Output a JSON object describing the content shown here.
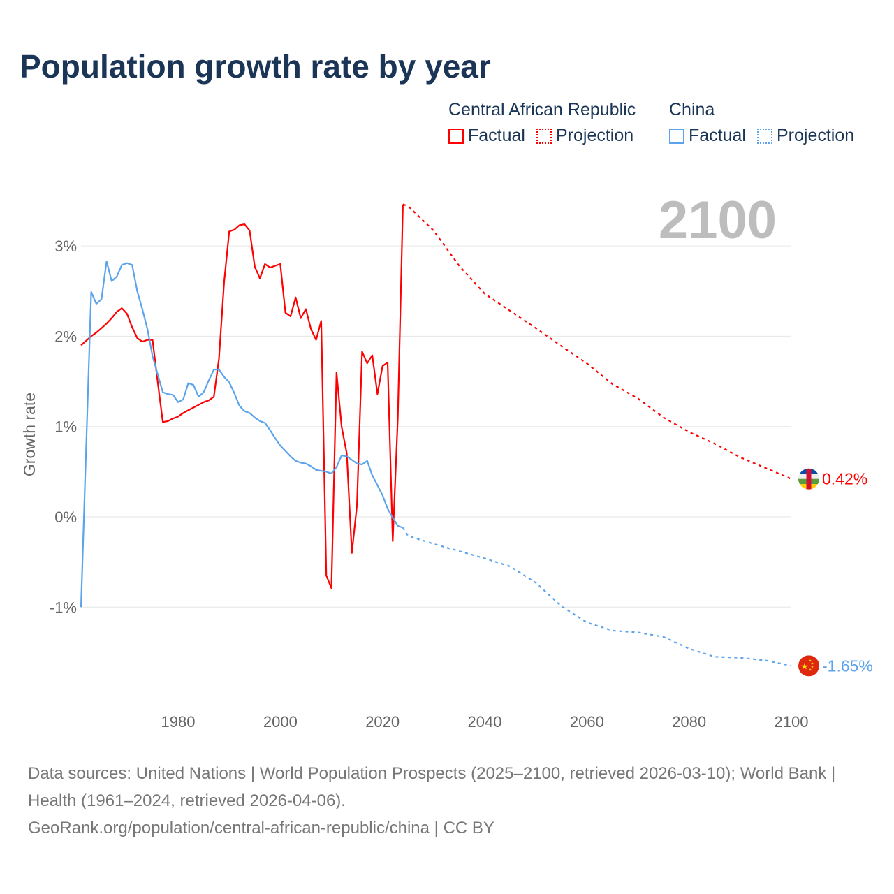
{
  "title": "Population growth rate by year",
  "legend": {
    "groups": [
      {
        "name": "Central African Republic",
        "factual": "Factual",
        "projection": "Projection"
      },
      {
        "name": "China",
        "factual": "Factual",
        "projection": "Projection"
      }
    ]
  },
  "current_year": "2100",
  "end_labels": {
    "car": "0.42%",
    "china": "-1.65%"
  },
  "flags": {
    "car": "central-african-republic-flag",
    "china": "china-flag"
  },
  "colors": {
    "car": "#ff0000",
    "china": "#5ba4ec",
    "title": "#1a3556"
  },
  "footer": {
    "line1": "Data sources: United Nations | World Population Prospects (2025–2100, retrieved 2026-03-10); World Bank | Health (1961–2024, retrieved 2026-04-06).",
    "line2": "GeoRank.org/population/central-african-republic/china | CC BY"
  },
  "chart_data": {
    "type": "line",
    "title": "Population growth rate by year",
    "xlabel": "",
    "ylabel": "Growth rate",
    "xlim": [
      1961,
      2100
    ],
    "ylim": [
      -1.9,
      3.6
    ],
    "x_ticks": [
      1980,
      2000,
      2020,
      2040,
      2060,
      2080,
      2100
    ],
    "x_tick_labels": [
      "1980",
      "2000",
      "2020",
      "2040",
      "2060",
      "2080",
      "2100"
    ],
    "y_ticks": [
      -1,
      0,
      1,
      2,
      3
    ],
    "y_tick_labels": [
      "-1%",
      "0%",
      "1%",
      "2%",
      "3%"
    ],
    "grid": true,
    "legend_position": "top-right",
    "series": [
      {
        "name": "Central African Republic – Factual",
        "key": "car",
        "style": "solid",
        "x": [
          1961,
          1962,
          1963,
          1964,
          1965,
          1966,
          1967,
          1968,
          1969,
          1970,
          1971,
          1972,
          1973,
          1974,
          1975,
          1976,
          1977,
          1978,
          1979,
          1980,
          1981,
          1982,
          1983,
          1984,
          1985,
          1986,
          1987,
          1988,
          1989,
          1990,
          1991,
          1992,
          1993,
          1994,
          1995,
          1996,
          1997,
          1998,
          1999,
          2000,
          2001,
          2002,
          2003,
          2004,
          2005,
          2006,
          2007,
          2008,
          2009,
          2010,
          2011,
          2012,
          2013,
          2014,
          2015,
          2016,
          2017,
          2018,
          2019,
          2020,
          2021,
          2022,
          2023,
          2024
        ],
        "y": [
          1.9,
          1.95,
          2.0,
          2.04,
          2.09,
          2.14,
          2.2,
          2.27,
          2.31,
          2.25,
          2.1,
          1.98,
          1.94,
          1.96,
          1.96,
          1.5,
          1.05,
          1.06,
          1.09,
          1.11,
          1.15,
          1.18,
          1.21,
          1.24,
          1.27,
          1.29,
          1.33,
          1.75,
          2.6,
          3.16,
          3.18,
          3.23,
          3.24,
          3.17,
          2.77,
          2.64,
          2.8,
          2.76,
          2.78,
          2.8,
          2.26,
          2.22,
          2.43,
          2.2,
          2.3,
          2.08,
          1.96,
          2.17,
          -0.65,
          -0.79,
          1.6,
          1.0,
          0.7,
          -0.4,
          0.13,
          1.83,
          1.7,
          1.79,
          1.36,
          1.67,
          1.71,
          -0.27,
          1.1,
          3.46
        ]
      },
      {
        "name": "Central African Republic – Projection",
        "key": "car",
        "style": "dotted",
        "x": [
          2024,
          2025,
          2030,
          2035,
          2040,
          2045,
          2050,
          2055,
          2060,
          2065,
          2070,
          2075,
          2080,
          2085,
          2090,
          2095,
          2100
        ],
        "y": [
          3.46,
          3.44,
          3.17,
          2.78,
          2.47,
          2.28,
          2.09,
          1.89,
          1.7,
          1.47,
          1.31,
          1.1,
          0.94,
          0.81,
          0.66,
          0.54,
          0.42
        ]
      },
      {
        "name": "China – Factual",
        "key": "china",
        "style": "solid",
        "x": [
          1961,
          1962,
          1963,
          1964,
          1965,
          1966,
          1967,
          1968,
          1969,
          1970,
          1971,
          1972,
          1973,
          1974,
          1975,
          1976,
          1977,
          1978,
          1979,
          1980,
          1981,
          1982,
          1983,
          1984,
          1985,
          1986,
          1987,
          1988,
          1989,
          1990,
          1991,
          1992,
          1993,
          1994,
          1995,
          1996,
          1997,
          1998,
          1999,
          2000,
          2001,
          2002,
          2003,
          2004,
          2005,
          2006,
          2007,
          2008,
          2009,
          2010,
          2011,
          2012,
          2013,
          2014,
          2015,
          2016,
          2017,
          2018,
          2019,
          2020,
          2021,
          2022,
          2023,
          2024
        ],
        "y": [
          -1.0,
          0.75,
          2.49,
          2.36,
          2.41,
          2.83,
          2.61,
          2.66,
          2.79,
          2.81,
          2.79,
          2.5,
          2.3,
          2.08,
          1.78,
          1.58,
          1.38,
          1.36,
          1.35,
          1.27,
          1.3,
          1.48,
          1.46,
          1.33,
          1.38,
          1.51,
          1.63,
          1.63,
          1.55,
          1.49,
          1.37,
          1.23,
          1.17,
          1.15,
          1.1,
          1.06,
          1.04,
          0.96,
          0.87,
          0.79,
          0.73,
          0.67,
          0.62,
          0.6,
          0.59,
          0.56,
          0.52,
          0.51,
          0.5,
          0.48,
          0.55,
          0.68,
          0.67,
          0.63,
          0.59,
          0.58,
          0.62,
          0.46,
          0.35,
          0.24,
          0.09,
          -0.01,
          -0.1,
          -0.12
        ]
      },
      {
        "name": "China – Projection",
        "key": "china",
        "style": "dotted",
        "x": [
          2024,
          2025,
          2030,
          2035,
          2040,
          2045,
          2050,
          2055,
          2060,
          2065,
          2070,
          2075,
          2080,
          2085,
          2090,
          2095,
          2100
        ],
        "y": [
          -0.12,
          -0.21,
          -0.3,
          -0.38,
          -0.46,
          -0.55,
          -0.73,
          -0.99,
          -1.17,
          -1.26,
          -1.28,
          -1.33,
          -1.46,
          -1.55,
          -1.56,
          -1.59,
          -1.65
        ]
      }
    ]
  }
}
